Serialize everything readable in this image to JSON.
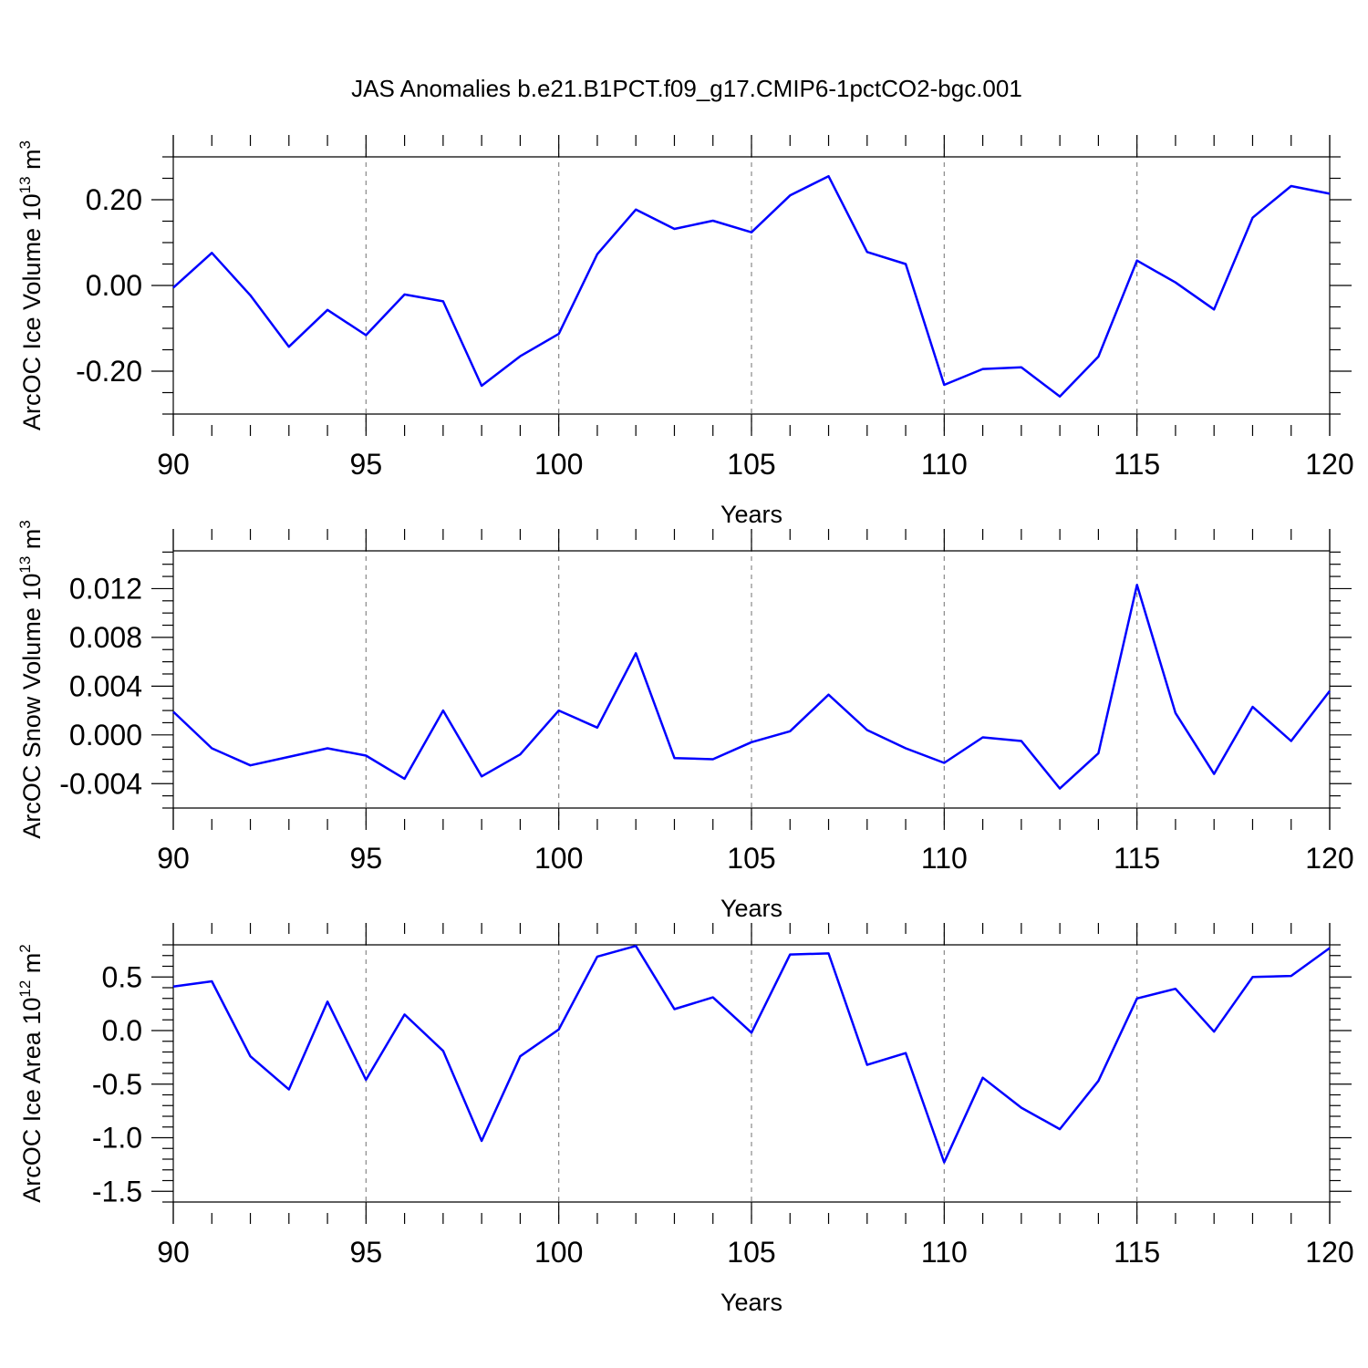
{
  "title": "JAS Anomalies b.e21.B1PCT.f09_g17.CMIP6-1pctCO2-bgc.001",
  "series_color": "#0000ff",
  "chart_data": [
    {
      "type": "line",
      "xlabel": "Years",
      "ylabel": {
        "main": "ArcOC Ice Volume 10",
        "exp": "13",
        "unit": " m",
        "unit_exp": "3"
      },
      "xlim": [
        90,
        120
      ],
      "ylim": [
        -0.3,
        0.3
      ],
      "xticks": [
        90,
        95,
        100,
        105,
        110,
        115,
        120
      ],
      "xtick_labels": [
        "90",
        "95",
        "100",
        "105",
        "110",
        "115",
        "120"
      ],
      "yticks": [
        -0.2,
        0.0,
        0.2
      ],
      "ytick_labels": [
        "-0.20",
        "0.00",
        "0.20"
      ],
      "yminor_step": 0.05,
      "grid": "vertical dashed at major x ticks",
      "x": [
        90,
        91,
        92,
        93,
        94,
        95,
        96,
        97,
        98,
        99,
        100,
        101,
        102,
        103,
        104,
        105,
        106,
        107,
        108,
        109,
        110,
        111,
        112,
        113,
        114,
        115,
        116,
        117,
        118,
        119,
        120
      ],
      "values": [
        -0.005,
        0.076,
        -0.023,
        -0.143,
        -0.057,
        -0.116,
        -0.021,
        -0.037,
        -0.234,
        -0.165,
        -0.113,
        0.073,
        0.177,
        0.132,
        0.151,
        0.124,
        0.21,
        0.255,
        0.078,
        0.05,
        -0.232,
        -0.195,
        -0.191,
        -0.259,
        -0.166,
        0.058,
        0.007,
        -0.056,
        0.158,
        0.232,
        0.214
      ]
    },
    {
      "type": "line",
      "xlabel": "Years",
      "ylabel": {
        "main": "ArcOC Snow Volume 10",
        "exp": "13",
        "unit": " m",
        "unit_exp": "3"
      },
      "xlim": [
        90,
        120
      ],
      "ylim": [
        -0.006,
        0.0151
      ],
      "xticks": [
        90,
        95,
        100,
        105,
        110,
        115,
        120
      ],
      "xtick_labels": [
        "90",
        "95",
        "100",
        "105",
        "110",
        "115",
        "120"
      ],
      "yticks": [
        -0.004,
        0.0,
        0.004,
        0.008,
        0.012
      ],
      "ytick_labels": [
        "-0.004",
        "0.000",
        "0.004",
        "0.008",
        "0.012"
      ],
      "yminor_step": 0.001,
      "grid": "vertical dashed at major x ticks",
      "x": [
        90,
        91,
        92,
        93,
        94,
        95,
        96,
        97,
        98,
        99,
        100,
        101,
        102,
        103,
        104,
        105,
        106,
        107,
        108,
        109,
        110,
        111,
        112,
        113,
        114,
        115,
        116,
        117,
        118,
        119,
        120
      ],
      "values": [
        0.0019,
        -0.0011,
        -0.0025,
        -0.0018,
        -0.0011,
        -0.0017,
        -0.0036,
        0.002,
        -0.0034,
        -0.0016,
        0.002,
        0.0006,
        0.0067,
        -0.0019,
        -0.002,
        -0.0006,
        0.0003,
        0.0033,
        0.0004,
        -0.0011,
        -0.0023,
        -0.0002,
        -0.0005,
        -0.0044,
        -0.0015,
        0.0123,
        0.0018,
        -0.0032,
        0.0023,
        -0.0005,
        0.0036
      ]
    },
    {
      "type": "line",
      "xlabel": "Years",
      "ylabel": {
        "main": "ArcOC Ice Area 10",
        "exp": "12",
        "unit": " m",
        "unit_exp": "2"
      },
      "xlim": [
        90,
        120
      ],
      "ylim": [
        -1.6,
        0.8
      ],
      "xticks": [
        90,
        95,
        100,
        105,
        110,
        115,
        120
      ],
      "xtick_labels": [
        "90",
        "95",
        "100",
        "105",
        "110",
        "115",
        "120"
      ],
      "yticks": [
        -1.5,
        -1.0,
        -0.5,
        0.0,
        0.5
      ],
      "ytick_labels": [
        "-1.5",
        "-1.0",
        "-0.5",
        "0.0",
        "0.5"
      ],
      "yminor_step": 0.1,
      "grid": "vertical dashed at major x ticks",
      "x": [
        90,
        91,
        92,
        93,
        94,
        95,
        96,
        97,
        98,
        99,
        100,
        101,
        102,
        103,
        104,
        105,
        106,
        107,
        108,
        109,
        110,
        111,
        112,
        113,
        114,
        115,
        116,
        117,
        118,
        119,
        120
      ],
      "values": [
        0.41,
        0.46,
        -0.24,
        -0.55,
        0.27,
        -0.46,
        0.15,
        -0.19,
        -1.03,
        -0.24,
        0.01,
        0.69,
        0.79,
        0.2,
        0.31,
        -0.02,
        0.71,
        0.72,
        -0.32,
        -0.21,
        -1.23,
        -0.44,
        -0.72,
        -0.92,
        -0.47,
        0.3,
        0.39,
        -0.01,
        0.5,
        0.51,
        0.77
      ]
    }
  ]
}
